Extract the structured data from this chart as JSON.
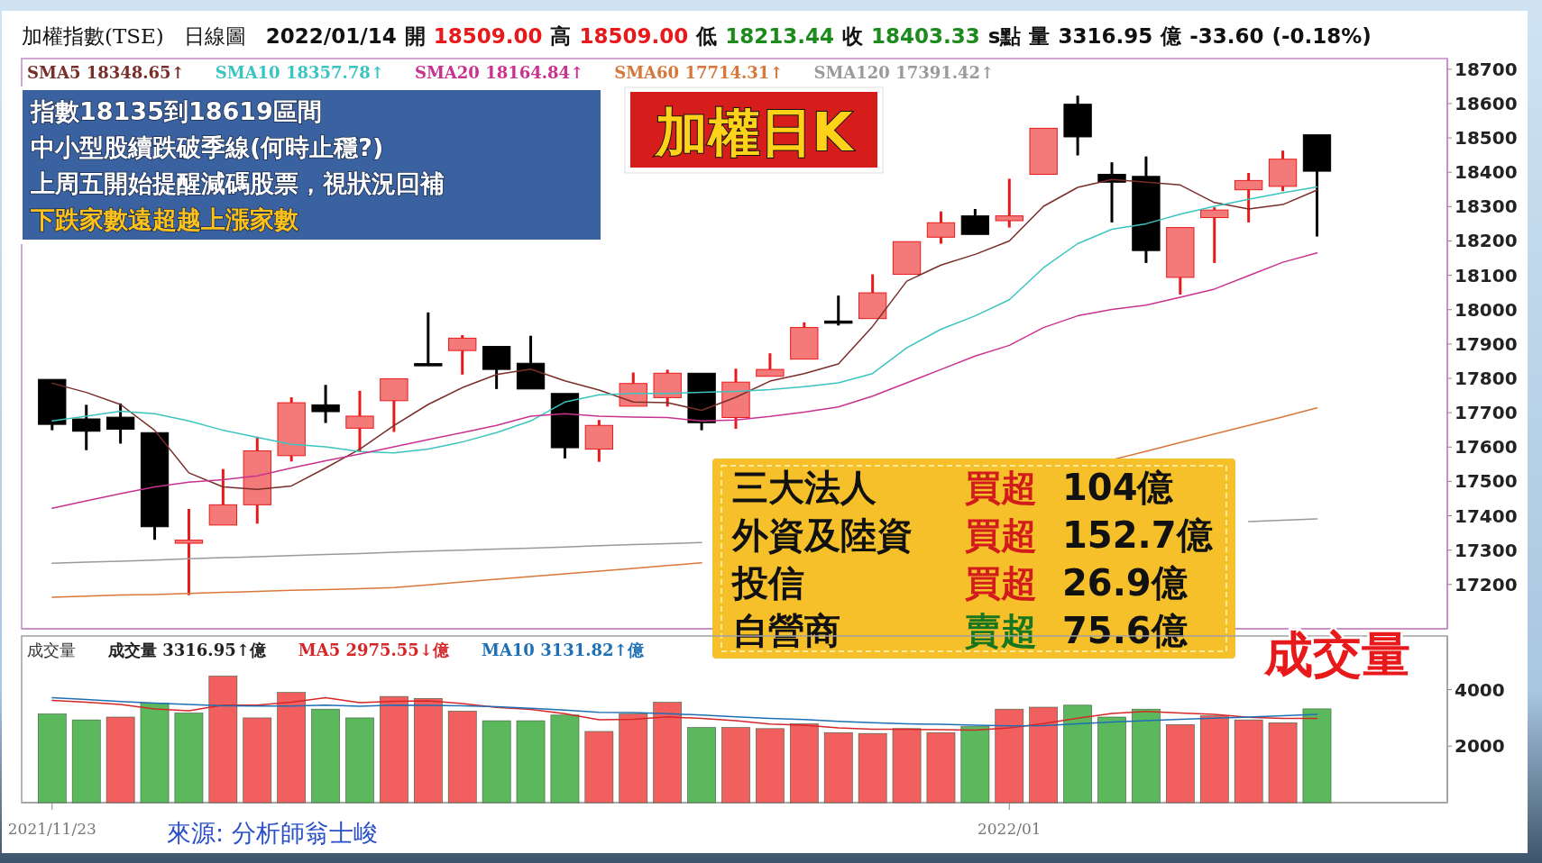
{
  "chart_data": [
    {
      "type": "candlestick",
      "title": "加權日K",
      "subtitle": "加權指數(TSE) 日線圖 2022/01/14 開 18509.00 高 18509.00 低 18213.44 收 18403.33 s點 量 3316.95 億 -33.60 (-0.18%)",
      "categories": [
        null,
        null,
        null,
        null,
        null,
        null,
        null,
        null,
        null,
        null,
        null,
        null,
        null,
        null,
        null,
        null,
        null,
        null,
        null,
        null,
        null,
        null,
        null,
        null,
        null,
        null,
        null,
        null,
        null,
        null,
        null,
        null,
        null,
        null,
        null,
        null,
        null,
        null
      ],
      "ohlc": [
        [
          17797,
          17797,
          17649,
          17666
        ],
        [
          17682,
          17723,
          17591,
          17646
        ],
        [
          17687,
          17727,
          17610,
          17652
        ],
        [
          17642,
          17642,
          17330,
          17368
        ],
        [
          17320,
          17420,
          17169,
          17329
        ],
        [
          17373,
          17536,
          17373,
          17432
        ],
        [
          17432,
          17630,
          17377,
          17589
        ],
        [
          17575,
          17745,
          17558,
          17729
        ],
        [
          17723,
          17781,
          17670,
          17703
        ],
        [
          17655,
          17764,
          17586,
          17690
        ],
        [
          17735,
          17799,
          17644,
          17799
        ],
        [
          17843,
          17992,
          17841,
          17841
        ],
        [
          17881,
          17926,
          17811,
          17917
        ],
        [
          17893,
          17893,
          17769,
          17826
        ],
        [
          17844,
          17924,
          17769,
          17769
        ],
        [
          17756,
          17756,
          17567,
          17598
        ],
        [
          17594,
          17679,
          17557,
          17663
        ],
        [
          17719,
          17817,
          17719,
          17785
        ],
        [
          17744,
          17825,
          17718,
          17815
        ],
        [
          17815,
          17815,
          17649,
          17671
        ],
        [
          17686,
          17828,
          17653,
          17789
        ],
        [
          17806,
          17873,
          17806,
          17826
        ],
        [
          17856,
          17963,
          17856,
          17948
        ],
        [
          17967,
          18041,
          17954,
          17965
        ],
        [
          17974,
          18103,
          17974,
          18049
        ],
        [
          18103,
          18198,
          18103,
          18198
        ],
        [
          18211,
          18286,
          18192,
          18253
        ],
        [
          18273,
          18293,
          18219,
          18219
        ],
        [
          18259,
          18381,
          18239,
          18273
        ],
        [
          18394,
          18528,
          18394,
          18528
        ],
        [
          18598,
          18623,
          18449,
          18503
        ],
        [
          18394,
          18429,
          18254,
          18371
        ],
        [
          18388,
          18446,
          18136,
          18172
        ],
        [
          18094,
          18239,
          18044,
          18239
        ],
        [
          18268,
          18298,
          18136,
          18290
        ],
        [
          18349,
          18398,
          18254,
          18376
        ],
        [
          18359,
          18463,
          18345,
          18438
        ],
        [
          18509,
          18509,
          18213,
          18403
        ]
      ],
      "series": [
        {
          "type": "line",
          "name": "SMA5 18348.65↑",
          "color": "#7a2e2a",
          "values": [
            17786,
            17759,
            17724,
            17649,
            17525,
            17484,
            17477,
            17487,
            17539,
            17594,
            17663,
            17724,
            17773,
            17811,
            17827,
            17793,
            17766,
            17731,
            17729,
            17707,
            17745,
            17792,
            17814,
            17842,
            17951,
            18083,
            18130,
            18161,
            18200,
            18301,
            18356,
            18379,
            18371,
            18363,
            18312,
            18293,
            18306,
            18348
          ]
        },
        {
          "type": "line",
          "name": "SMA10 18357.78↑",
          "color": "#3cc4c0",
          "values": [
            17676,
            17690,
            17704,
            17697,
            17676,
            17649,
            17628,
            17608,
            17601,
            17587,
            17583,
            17594,
            17615,
            17642,
            17676,
            17731,
            17752,
            17756,
            17756,
            17759,
            17762,
            17767,
            17776,
            17787,
            17814,
            17889,
            17943,
            17982,
            18029,
            18122,
            18192,
            18234,
            18250,
            18278,
            18301,
            18321,
            18340,
            18357
          ]
        },
        {
          "type": "line",
          "name": "SMA20 18164.84↑",
          "color": "#c8338f",
          "values": [
            17422,
            17443,
            17464,
            17484,
            17498,
            17505,
            17516,
            17539,
            17560,
            17580,
            17601,
            17622,
            17642,
            17663,
            17690,
            17697,
            17690,
            17687,
            17686,
            17676,
            17679,
            17689,
            17702,
            17717,
            17748,
            17787,
            17826,
            17865,
            17896,
            17948,
            17982,
            18001,
            18013,
            18036,
            18060,
            18099,
            18138,
            18165
          ]
        },
        {
          "type": "line",
          "name": "SMA60 17714.31↑",
          "color": "#d9773a",
          "values": [
            17163,
            17166,
            17169,
            17171,
            17174,
            17177,
            17180,
            17183,
            17185,
            17188,
            17191,
            17199,
            17207,
            17215,
            17223,
            17231,
            17239,
            17247,
            17255,
            17263,
            null,
            null,
            null,
            null,
            null,
            null,
            null,
            null,
            null,
            null,
            null,
            17563,
            17588,
            17613,
            17638,
            17663,
            17688,
            17714
          ]
        },
        {
          "type": "line",
          "name": "SMA120 17391.42↑",
          "color": "#9a9a9a",
          "values": [
            17262,
            17265,
            17268,
            17271,
            17275,
            17278,
            17281,
            17284,
            17287,
            17290,
            17294,
            17297,
            17300,
            17303,
            17306,
            17309,
            17313,
            17316,
            17319,
            17322,
            null,
            null,
            null,
            null,
            null,
            null,
            null,
            null,
            null,
            null,
            null,
            null,
            null,
            null,
            null,
            17383,
            17387,
            17391
          ]
        }
      ],
      "ylim": [
        17071,
        18731
      ],
      "yticks": [
        17200,
        17300,
        17400,
        17500,
        17600,
        17700,
        17800,
        17900,
        18000,
        18100,
        18200,
        18300,
        18400,
        18500,
        18600,
        18700
      ],
      "tick_labels": "y",
      "annotations": [
        "指數18135到18619區間",
        "中小型股續跌破季線(何時止穩?)",
        "上周五開始提醒減碼股票，視狀況回補",
        "下跌家數遠超越上漲家數",
        "三大法人 買超 104億",
        "外資及陸資 買超 152.7億",
        "投信 買超 26.9億",
        "自營商 賣超 75.6億"
      ]
    },
    {
      "type": "bar",
      "title": "成交量",
      "categories": [
        "2021/11/23",
        null,
        null,
        null,
        null,
        null,
        null,
        null,
        null,
        null,
        null,
        null,
        null,
        null,
        null,
        null,
        null,
        null,
        null,
        null,
        null,
        null,
        null,
        null,
        null,
        null,
        null,
        null,
        "2022/01",
        null,
        null,
        null,
        null,
        null,
        null,
        null,
        null,
        null
      ],
      "series": [
        {
          "type": "bar",
          "name": "成交量 3316.95↑億",
          "colors": [
            "#5cb85c",
            "#5cb85c",
            "#f25f5f",
            "#5cb85c",
            "#5cb85c",
            "#f25f5f",
            "#f25f5f",
            "#f25f5f",
            "#5cb85c",
            "#5cb85c",
            "#f25f5f",
            "#f25f5f",
            "#f25f5f",
            "#5cb85c",
            "#5cb85c",
            "#5cb85c",
            "#f25f5f",
            "#f25f5f",
            "#f25f5f",
            "#5cb85c",
            "#f25f5f",
            "#f25f5f",
            "#f25f5f",
            "#f25f5f",
            "#f25f5f",
            "#f25f5f",
            "#f25f5f",
            "#5cb85c",
            "#f25f5f",
            "#f25f5f",
            "#5cb85c",
            "#5cb85c",
            "#5cb85c",
            "#f25f5f",
            "#f25f5f",
            "#f25f5f",
            "#f25f5f",
            "#5cb85c"
          ],
          "values": [
            3140,
            2930,
            3030,
            3520,
            3170,
            4480,
            3000,
            3900,
            3310,
            3000,
            3760,
            3690,
            3240,
            2900,
            2900,
            3100,
            2520,
            3140,
            3550,
            2660,
            2660,
            2620,
            2790,
            2480,
            2450,
            2620,
            2480,
            2690,
            3310,
            3380,
            3450,
            3030,
            3310,
            2760,
            3070,
            2930,
            2830,
            3320
          ]
        },
        {
          "type": "line",
          "name": "MA5 2975.55↓億",
          "color": "#d62728",
          "values": [
            3620,
            3560,
            3480,
            3320,
            3250,
            3450,
            3450,
            3560,
            3720,
            3540,
            3590,
            3600,
            3510,
            3370,
            3300,
            3150,
            2930,
            2950,
            3040,
            2980,
            2900,
            2780,
            2740,
            2650,
            2600,
            2600,
            2580,
            2570,
            2650,
            2800,
            2990,
            3160,
            3230,
            3170,
            3130,
            3020,
            2980,
            2980
          ]
        },
        {
          "type": "line",
          "name": "MA10 3131.82↑億",
          "color": "#1f6fb5",
          "values": [
            3720,
            3650,
            3580,
            3520,
            3480,
            3430,
            3420,
            3420,
            3450,
            3410,
            3450,
            3440,
            3430,
            3400,
            3340,
            3280,
            3200,
            3190,
            3150,
            3100,
            3040,
            2980,
            2940,
            2880,
            2830,
            2790,
            2770,
            2740,
            2720,
            2730,
            2790,
            2850,
            2900,
            2950,
            2990,
            3030,
            3080,
            3130
          ]
        }
      ],
      "ylim": [
        0,
        5900
      ],
      "yticks": [
        2000,
        4000
      ],
      "annotations": [
        "成交量",
        "來源: 分析師翁士峻"
      ]
    }
  ]
}
